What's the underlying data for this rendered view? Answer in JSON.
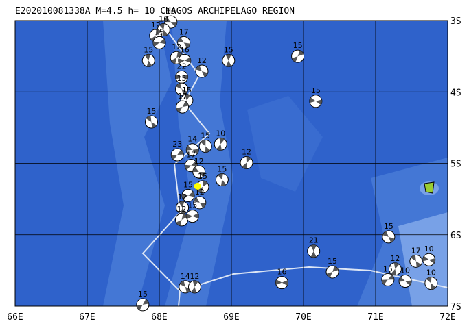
{
  "map": {
    "title": "E202010081338A M=4.5 h= 10 CHAGOS ARCHIPELAGO REGION",
    "xlim": [
      66,
      72
    ],
    "ylim": [
      -7,
      -3
    ],
    "xticks": [
      {
        "value": 66,
        "label": "66E"
      },
      {
        "value": 67,
        "label": "67E"
      },
      {
        "value": 68,
        "label": "68E"
      },
      {
        "value": 69,
        "label": "69E"
      },
      {
        "value": 70,
        "label": "70E"
      },
      {
        "value": 71,
        "label": "71E"
      },
      {
        "value": 72,
        "label": "72E"
      }
    ],
    "yticks": [
      {
        "value": -3,
        "label": "3S"
      },
      {
        "value": -4,
        "label": "4S"
      },
      {
        "value": -5,
        "label": "5S"
      },
      {
        "value": -6,
        "label": "6S"
      },
      {
        "value": -7,
        "label": "7S"
      }
    ],
    "epicenter": {
      "lon": 68.53,
      "lat": -5.32
    },
    "events": [
      {
        "lon": 68.16,
        "lat": -3.02,
        "label": "16"
      },
      {
        "lon": 68.06,
        "lat": -3.13,
        "label": "10"
      },
      {
        "lon": 67.95,
        "lat": -3.21,
        "label": "12"
      },
      {
        "lon": 68.0,
        "lat": -3.31,
        "label": "15"
      },
      {
        "lon": 68.34,
        "lat": -3.31,
        "label": "17"
      },
      {
        "lon": 67.85,
        "lat": -3.56,
        "label": "15"
      },
      {
        "lon": 68.24,
        "lat": -3.52,
        "label": "12"
      },
      {
        "lon": 68.35,
        "lat": -3.56,
        "label": "16"
      },
      {
        "lon": 68.59,
        "lat": -3.71,
        "label": "12"
      },
      {
        "lon": 68.96,
        "lat": -3.56,
        "label": "15"
      },
      {
        "lon": 69.92,
        "lat": -3.5,
        "label": "15"
      },
      {
        "lon": 68.31,
        "lat": -3.79,
        "label": "22"
      },
      {
        "lon": 68.31,
        "lat": -3.96,
        "label": "15"
      },
      {
        "lon": 68.38,
        "lat": -4.12,
        "label": "15"
      },
      {
        "lon": 68.32,
        "lat": -4.21,
        "label": "17"
      },
      {
        "lon": 70.17,
        "lat": -4.13,
        "label": "15"
      },
      {
        "lon": 67.89,
        "lat": -4.42,
        "label": "15"
      },
      {
        "lon": 68.85,
        "lat": -4.73,
        "label": "10"
      },
      {
        "lon": 68.25,
        "lat": -4.88,
        "label": "23"
      },
      {
        "lon": 68.46,
        "lat": -4.81,
        "label": "14"
      },
      {
        "lon": 68.64,
        "lat": -4.76,
        "label": "15"
      },
      {
        "lon": 69.21,
        "lat": -4.99,
        "label": "12"
      },
      {
        "lon": 68.44,
        "lat": -5.03,
        "label": "17"
      },
      {
        "lon": 68.55,
        "lat": -5.12,
        "label": "12"
      },
      {
        "lon": 68.87,
        "lat": -5.23,
        "label": "15"
      },
      {
        "lon": 68.6,
        "lat": -5.33,
        "label": "15"
      },
      {
        "lon": 68.4,
        "lat": -5.45,
        "label": "15"
      },
      {
        "lon": 68.56,
        "lat": -5.55,
        "label": "12"
      },
      {
        "lon": 68.32,
        "lat": -5.62,
        "label": "12"
      },
      {
        "lon": 68.31,
        "lat": -5.79,
        "label": "12"
      },
      {
        "lon": 68.46,
        "lat": -5.74,
        "label": "15"
      },
      {
        "lon": 71.18,
        "lat": -6.03,
        "label": "15"
      },
      {
        "lon": 70.14,
        "lat": -6.23,
        "label": "21"
      },
      {
        "lon": 70.4,
        "lat": -6.52,
        "label": "15"
      },
      {
        "lon": 69.7,
        "lat": -6.67,
        "label": "16"
      },
      {
        "lon": 68.36,
        "lat": -6.73,
        "label": "14"
      },
      {
        "lon": 68.49,
        "lat": -6.73,
        "label": "12"
      },
      {
        "lon": 67.77,
        "lat": -6.98,
        "label": "15"
      },
      {
        "lon": 71.74,
        "lat": -6.35,
        "label": "10"
      },
      {
        "lon": 71.56,
        "lat": -6.37,
        "label": "17"
      },
      {
        "lon": 71.27,
        "lat": -6.48,
        "label": "12"
      },
      {
        "lon": 71.17,
        "lat": -6.63,
        "label": "15"
      },
      {
        "lon": 71.41,
        "lat": -6.65,
        "label": "10"
      },
      {
        "lon": 71.77,
        "lat": -6.68,
        "label": "10"
      }
    ]
  }
}
